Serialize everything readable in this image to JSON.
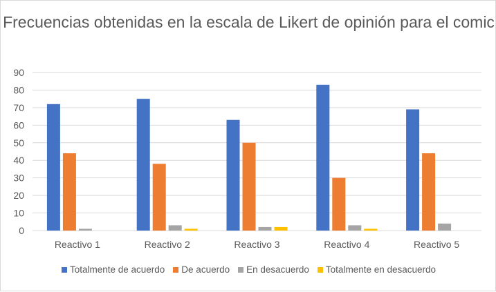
{
  "chart_data": {
    "type": "bar",
    "title": "Frecuencias obtenidas en la escala de Likert de opinión para el comic",
    "categories": [
      "Reactivo 1",
      "Reactivo 2",
      "Reactivo 3",
      "Reactivo 4",
      "Reactivo 5"
    ],
    "series": [
      {
        "name": "Totalmente de acuerdo",
        "color": "#4472c4",
        "values": [
          72,
          75,
          63,
          83,
          69
        ]
      },
      {
        "name": "De acuerdo",
        "color": "#ed7d31",
        "values": [
          44,
          38,
          50,
          30,
          44
        ]
      },
      {
        "name": "En desacuerdo",
        "color": "#a5a5a5",
        "values": [
          1,
          3,
          2,
          3,
          4
        ]
      },
      {
        "name": "Totalmente en desacuerdo",
        "color": "#ffc000",
        "values": [
          0,
          1,
          2,
          1,
          0
        ]
      }
    ],
    "yticks": [
      0,
      10,
      20,
      30,
      40,
      50,
      60,
      70,
      80,
      90
    ],
    "ylim": [
      0,
      90
    ],
    "xlabel": "",
    "ylabel": "",
    "grid": true,
    "legend": "bottom"
  }
}
